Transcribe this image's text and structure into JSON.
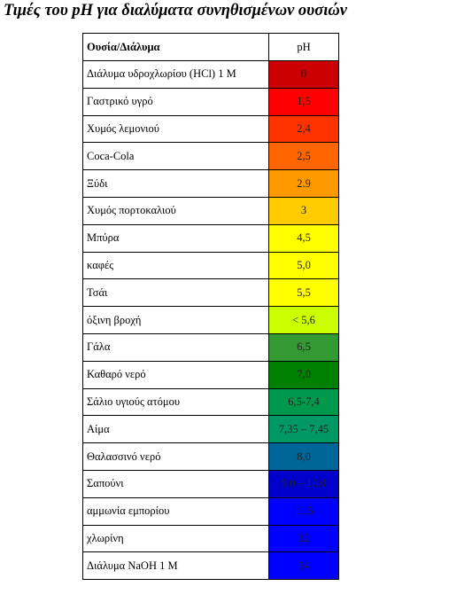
{
  "title": "Τιμές του pH για διαλύματα συνηθισμένων ουσιών",
  "table": {
    "header": [
      "Ουσία/Διάλυμα",
      "pH"
    ],
    "rows": [
      [
        "Διάλυμα υδροχλωρίου (HCl) 1 M",
        "0"
      ],
      [
        "Γαστρικό υγρό",
        "1,5"
      ],
      [
        "Χυμός λεμονιού",
        "2,4"
      ],
      [
        "Coca-Cola",
        "2,5"
      ],
      [
        "Ξύδι",
        "2.9"
      ],
      [
        "Χυμός πορτοκαλιού",
        "3"
      ],
      [
        "Μπύρα",
        "4,5"
      ],
      [
        "καφές",
        "5,0"
      ],
      [
        "Τσάι",
        "5,5"
      ],
      [
        "όξινη βροχή",
        "< 5,6"
      ],
      [
        "Γάλα",
        "6,5"
      ],
      [
        "Καθαρό νερό",
        "7,0"
      ],
      [
        "Σάλιο υγιούς ατόμου",
        "6,5-7,4"
      ],
      [
        "Αίμα",
        "7,35 – 7,45"
      ],
      [
        "Θαλασσινό νερό",
        "8,0"
      ],
      [
        "Σαπούνι",
        "9,0 – 10,0"
      ],
      [
        "αμμωνία εμπορίου",
        "11,5"
      ],
      [
        "χλωρίνη",
        "12"
      ],
      [
        "Διάλυμα NaOH 1 M",
        "14"
      ]
    ],
    "colors": [
      "#cc0000",
      "#ff0000",
      "#ff3300",
      "#ff6600",
      "#ff9900",
      "#ffcc00",
      "#ffff00",
      "#ffff00",
      "#ffff00",
      "#ccff00",
      "#339933",
      "#008000",
      "#00994c",
      "#009966",
      "#006699",
      "#0000cc",
      "#0000ff",
      "#0000ff",
      "#0000ff"
    ]
  }
}
